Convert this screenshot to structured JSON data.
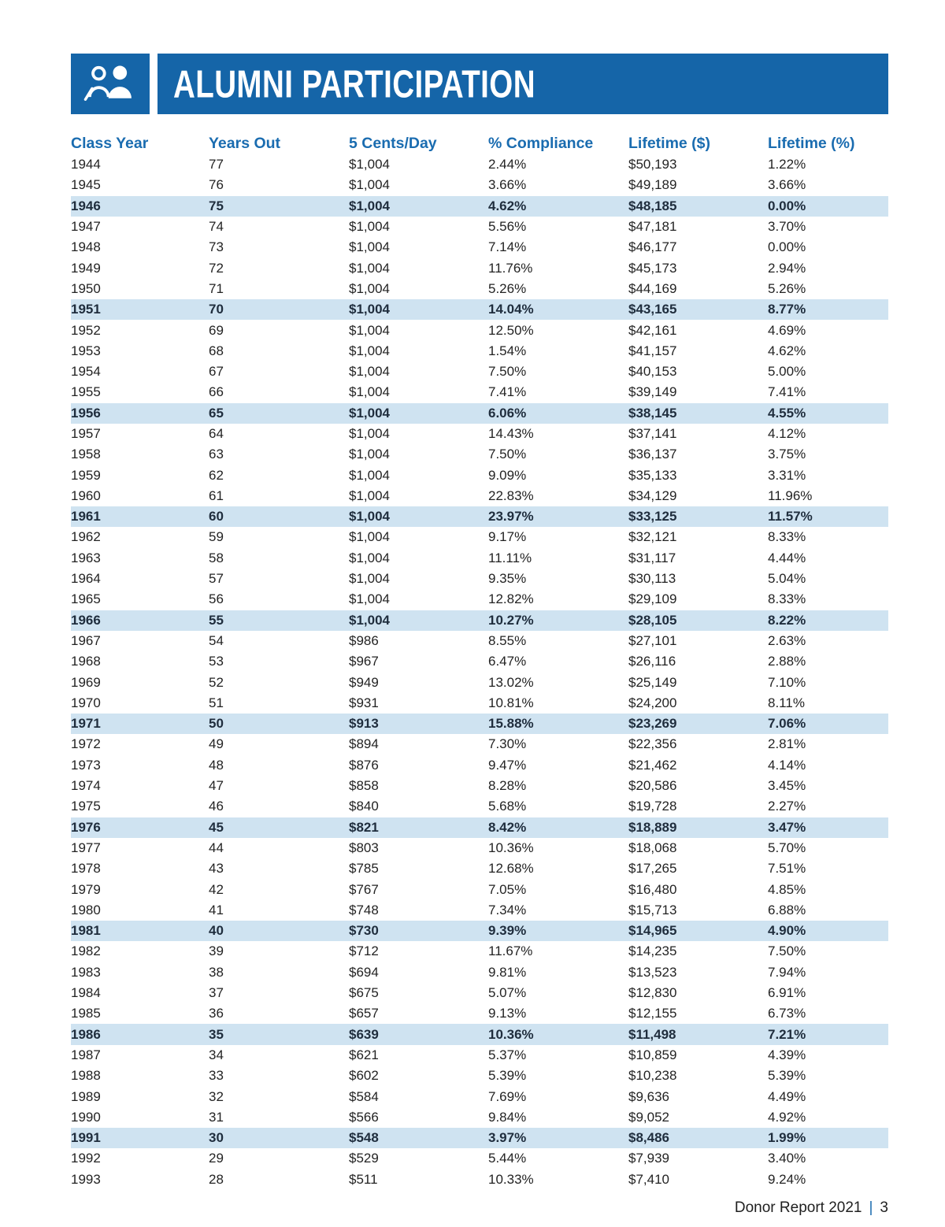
{
  "header": {
    "title": "ALUMNI PARTICIPATION",
    "icon": "people-icon"
  },
  "colors": {
    "banner_blue": "#1565a8",
    "header_text_blue": "#1a6cb0",
    "row_highlight": "#cfe3f1",
    "body_text": "#232323"
  },
  "table": {
    "columns": [
      "Class Year",
      "Years Out",
      "5 Cents/Day",
      "% Compliance",
      "Lifetime ($)",
      "Lifetime (%)"
    ],
    "highlight_years": [
      "1946",
      "1951",
      "1956",
      "1961",
      "1966",
      "1971",
      "1976",
      "1981",
      "1986",
      "1991"
    ],
    "rows": [
      [
        "1944",
        "77",
        "$1,004",
        "2.44%",
        "$50,193",
        "1.22%"
      ],
      [
        "1945",
        "76",
        "$1,004",
        "3.66%",
        "$49,189",
        "3.66%"
      ],
      [
        "1946",
        "75",
        "$1,004",
        "4.62%",
        "$48,185",
        "0.00%"
      ],
      [
        "1947",
        "74",
        "$1,004",
        "5.56%",
        "$47,181",
        "3.70%"
      ],
      [
        "1948",
        "73",
        "$1,004",
        "7.14%",
        "$46,177",
        "0.00%"
      ],
      [
        "1949",
        "72",
        "$1,004",
        "11.76%",
        "$45,173",
        "2.94%"
      ],
      [
        "1950",
        "71",
        "$1,004",
        "5.26%",
        "$44,169",
        "5.26%"
      ],
      [
        "1951",
        "70",
        "$1,004",
        "14.04%",
        "$43,165",
        "8.77%"
      ],
      [
        "1952",
        "69",
        "$1,004",
        "12.50%",
        "$42,161",
        "4.69%"
      ],
      [
        "1953",
        "68",
        "$1,004",
        "1.54%",
        "$41,157",
        "4.62%"
      ],
      [
        "1954",
        "67",
        "$1,004",
        "7.50%",
        "$40,153",
        "5.00%"
      ],
      [
        "1955",
        "66",
        "$1,004",
        "7.41%",
        "$39,149",
        "7.41%"
      ],
      [
        "1956",
        "65",
        "$1,004",
        "6.06%",
        "$38,145",
        "4.55%"
      ],
      [
        "1957",
        "64",
        "$1,004",
        "14.43%",
        "$37,141",
        "4.12%"
      ],
      [
        "1958",
        "63",
        "$1,004",
        "7.50%",
        "$36,137",
        "3.75%"
      ],
      [
        "1959",
        "62",
        "$1,004",
        "9.09%",
        "$35,133",
        "3.31%"
      ],
      [
        "1960",
        "61",
        "$1,004",
        "22.83%",
        "$34,129",
        "11.96%"
      ],
      [
        "1961",
        "60",
        "$1,004",
        "23.97%",
        "$33,125",
        "11.57%"
      ],
      [
        "1962",
        "59",
        "$1,004",
        "9.17%",
        "$32,121",
        "8.33%"
      ],
      [
        "1963",
        "58",
        "$1,004",
        "11.11%",
        "$31,117",
        "4.44%"
      ],
      [
        "1964",
        "57",
        "$1,004",
        "9.35%",
        "$30,113",
        "5.04%"
      ],
      [
        "1965",
        "56",
        "$1,004",
        "12.82%",
        "$29,109",
        "8.33%"
      ],
      [
        "1966",
        "55",
        "$1,004",
        "10.27%",
        "$28,105",
        "8.22%"
      ],
      [
        "1967",
        "54",
        "$986",
        "8.55%",
        "$27,101",
        "2.63%"
      ],
      [
        "1968",
        "53",
        "$967",
        "6.47%",
        "$26,116",
        "2.88%"
      ],
      [
        "1969",
        "52",
        "$949",
        "13.02%",
        "$25,149",
        "7.10%"
      ],
      [
        "1970",
        "51",
        "$931",
        "10.81%",
        "$24,200",
        "8.11%"
      ],
      [
        "1971",
        "50",
        "$913",
        "15.88%",
        "$23,269",
        "7.06%"
      ],
      [
        "1972",
        "49",
        "$894",
        "7.30%",
        "$22,356",
        "2.81%"
      ],
      [
        "1973",
        "48",
        "$876",
        "9.47%",
        "$21,462",
        "4.14%"
      ],
      [
        "1974",
        "47",
        "$858",
        "8.28%",
        "$20,586",
        "3.45%"
      ],
      [
        "1975",
        "46",
        "$840",
        "5.68%",
        "$19,728",
        "2.27%"
      ],
      [
        "1976",
        "45",
        "$821",
        "8.42%",
        "$18,889",
        "3.47%"
      ],
      [
        "1977",
        "44",
        "$803",
        "10.36%",
        "$18,068",
        "5.70%"
      ],
      [
        "1978",
        "43",
        "$785",
        "12.68%",
        "$17,265",
        "7.51%"
      ],
      [
        "1979",
        "42",
        "$767",
        "7.05%",
        "$16,480",
        "4.85%"
      ],
      [
        "1980",
        "41",
        "$748",
        "7.34%",
        "$15,713",
        "6.88%"
      ],
      [
        "1981",
        "40",
        "$730",
        "9.39%",
        "$14,965",
        "4.90%"
      ],
      [
        "1982",
        "39",
        "$712",
        "11.67%",
        "$14,235",
        "7.50%"
      ],
      [
        "1983",
        "38",
        "$694",
        "9.81%",
        "$13,523",
        "7.94%"
      ],
      [
        "1984",
        "37",
        "$675",
        "5.07%",
        "$12,830",
        "6.91%"
      ],
      [
        "1985",
        "36",
        "$657",
        "9.13%",
        "$12,155",
        "6.73%"
      ],
      [
        "1986",
        "35",
        "$639",
        "10.36%",
        "$11,498",
        "7.21%"
      ],
      [
        "1987",
        "34",
        "$621",
        "5.37%",
        "$10,859",
        "4.39%"
      ],
      [
        "1988",
        "33",
        "$602",
        "5.39%",
        "$10,238",
        "5.39%"
      ],
      [
        "1989",
        "32",
        "$584",
        "7.69%",
        "$9,636",
        "4.49%"
      ],
      [
        "1990",
        "31",
        "$566",
        "9.84%",
        "$9,052",
        "4.92%"
      ],
      [
        "1991",
        "30",
        "$548",
        "3.97%",
        "$8,486",
        "1.99%"
      ],
      [
        "1992",
        "29",
        "$529",
        "5.44%",
        "$7,939",
        "3.40%"
      ],
      [
        "1993",
        "28",
        "$511",
        "10.33%",
        "$7,410",
        "9.24%"
      ]
    ]
  },
  "footer": {
    "text": "Donor Report 2021",
    "divider": "|",
    "page": "3"
  }
}
